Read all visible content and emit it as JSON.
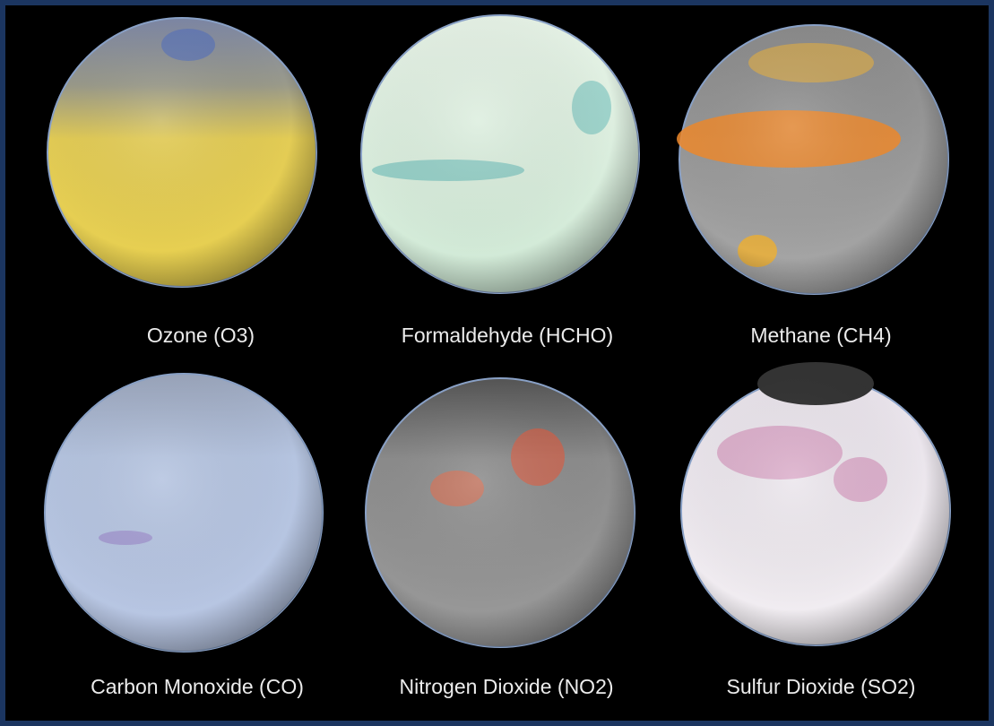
{
  "panels": [
    {
      "label": "Ozone (O3)"
    },
    {
      "label": "Formaldehyde (HCHO)"
    },
    {
      "label": "Methane (CH4)"
    },
    {
      "label": "Carbon Monoxide (CO)"
    },
    {
      "label": "Nitrogen Dioxide (NO2)"
    },
    {
      "label": "Sulfur Dioxide (SO2)"
    }
  ]
}
